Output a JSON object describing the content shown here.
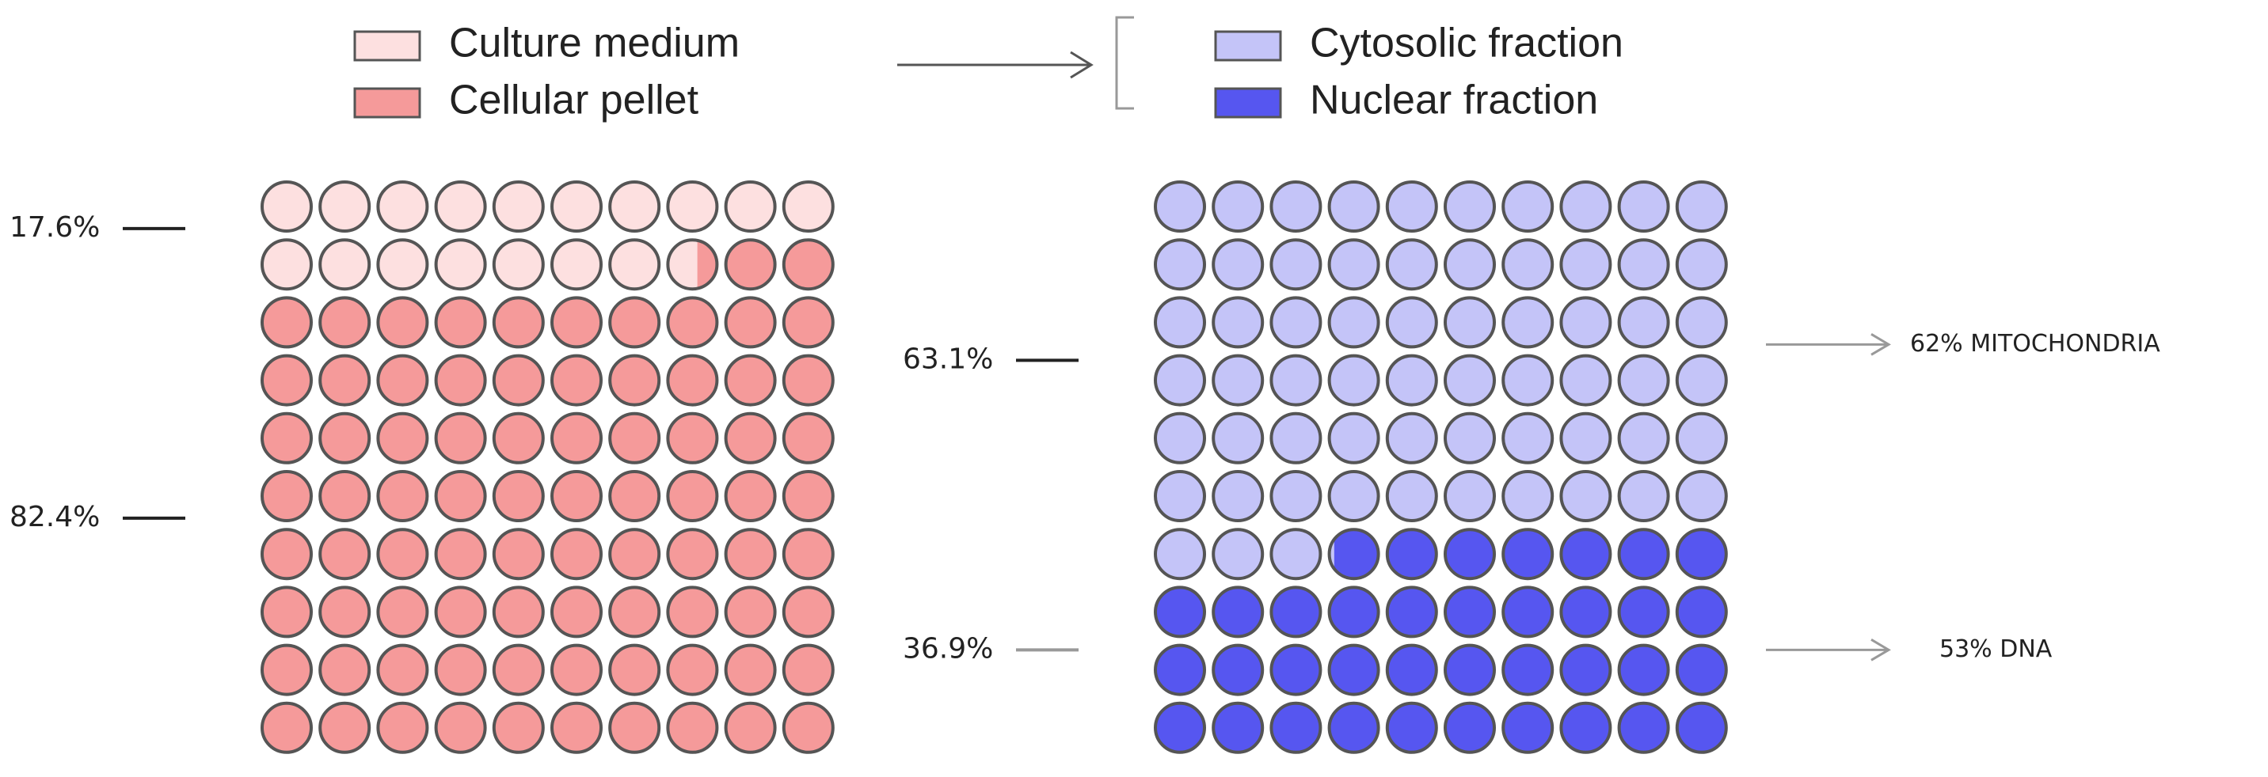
{
  "chart_data": [
    {
      "type": "waffle",
      "series": [
        {
          "name": "Culture medium",
          "color": "#fde0e0",
          "values": [
            17.6
          ],
          "value_labels": [
            "17.6%"
          ]
        },
        {
          "name": "Cellular pellet",
          "color": "#f59a9a",
          "values": [
            82.4
          ],
          "value_labels": [
            "82.4%"
          ]
        }
      ]
    },
    {
      "type": "waffle",
      "series": [
        {
          "name": "Cytosolic fraction",
          "color": "#c4c4f8",
          "values": [
            63.1
          ],
          "value_labels": [
            "63.1%"
          ]
        },
        {
          "name": "Nuclear fraction",
          "color": "#5656f0",
          "values": [
            36.9
          ],
          "value_labels": [
            "36.9%"
          ]
        }
      ],
      "annotations": [
        "62% MITOCHONDRIA",
        "53% DNA"
      ]
    }
  ]
}
